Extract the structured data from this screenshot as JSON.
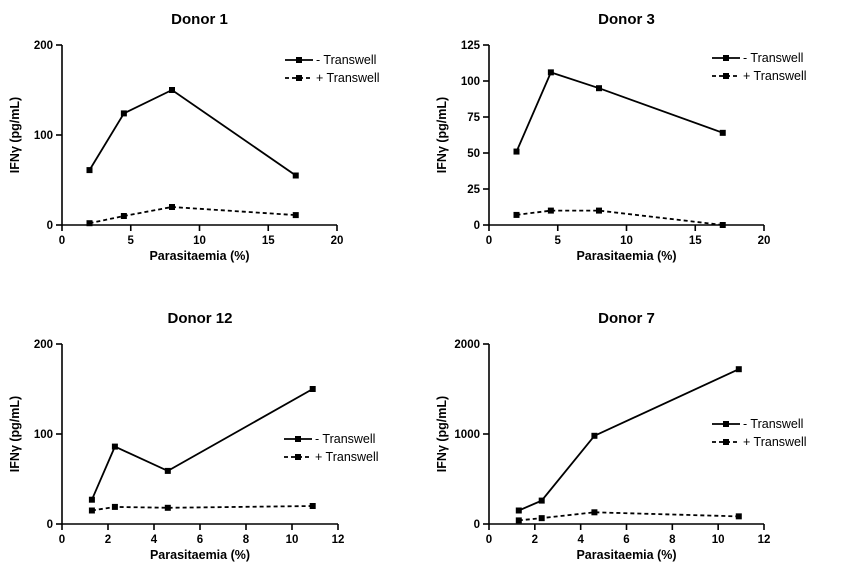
{
  "chart_data": [
    {
      "type": "line",
      "title": "Donor 1",
      "xlabel": "Parasitaemia (%)",
      "ylabel": "IFNγ (pg/mL)",
      "xlim": [
        0,
        20
      ],
      "ylim": [
        0,
        200
      ],
      "xticks": [
        0,
        5,
        10,
        15,
        20
      ],
      "yticks": [
        0,
        100,
        200
      ],
      "legend_position": "top-right",
      "series": [
        {
          "name": "- Transwell",
          "style": "solid",
          "x": [
            2,
            4.5,
            8,
            17
          ],
          "y": [
            61,
            124,
            150,
            55
          ]
        },
        {
          "name": "+ Transwell",
          "style": "dashed",
          "x": [
            2,
            4.5,
            8,
            17
          ],
          "y": [
            2,
            10,
            20,
            11
          ]
        }
      ]
    },
    {
      "type": "line",
      "title": "Donor 3",
      "xlabel": "Parasitaemia (%)",
      "ylabel": "IFNγ (pg/mL)",
      "xlim": [
        0,
        20
      ],
      "ylim": [
        0,
        125
      ],
      "xticks": [
        0,
        5,
        10,
        15,
        20
      ],
      "yticks": [
        0,
        25,
        50,
        75,
        100,
        125
      ],
      "legend_position": "top-right",
      "series": [
        {
          "name": "- Transwell",
          "style": "solid",
          "x": [
            2,
            4.5,
            8,
            17
          ],
          "y": [
            51,
            106,
            95,
            64
          ]
        },
        {
          "name": "+ Transwell",
          "style": "dashed",
          "x": [
            2,
            4.5,
            8,
            17
          ],
          "y": [
            7,
            10,
            10,
            0
          ]
        }
      ]
    },
    {
      "type": "line",
      "title": "Donor 12",
      "xlabel": "Parasitaemia (%)",
      "ylabel": "IFNγ (pg/mL)",
      "xlim": [
        0,
        12
      ],
      "ylim": [
        0,
        200
      ],
      "xticks": [
        0,
        2,
        4,
        6,
        8,
        10,
        12
      ],
      "yticks": [
        0,
        100,
        200
      ],
      "legend_position": "right",
      "series": [
        {
          "name": "- Transwell",
          "style": "solid",
          "x": [
            1.3,
            2.3,
            4.6,
            10.9
          ],
          "y": [
            27,
            86,
            59,
            150
          ]
        },
        {
          "name": "+ Transwell",
          "style": "dashed",
          "x": [
            1.3,
            2.3,
            4.6,
            10.9
          ],
          "y": [
            15,
            19,
            18,
            20
          ]
        }
      ]
    },
    {
      "type": "line",
      "title": "Donor 7",
      "xlabel": "Parasitaemia (%)",
      "ylabel": "IFNγ (pg/mL)",
      "xlim": [
        0,
        12
      ],
      "ylim": [
        0,
        2000
      ],
      "xticks": [
        0,
        2,
        4,
        6,
        8,
        10,
        12
      ],
      "yticks": [
        0,
        1000,
        2000
      ],
      "legend_position": "right",
      "series": [
        {
          "name": "- Transwell",
          "style": "solid",
          "x": [
            1.3,
            2.3,
            4.6,
            10.9
          ],
          "y": [
            150,
            260,
            980,
            1720
          ]
        },
        {
          "name": "+ Transwell",
          "style": "dashed",
          "x": [
            1.3,
            2.3,
            4.6,
            10.9
          ],
          "y": [
            40,
            65,
            130,
            85
          ]
        }
      ]
    }
  ]
}
